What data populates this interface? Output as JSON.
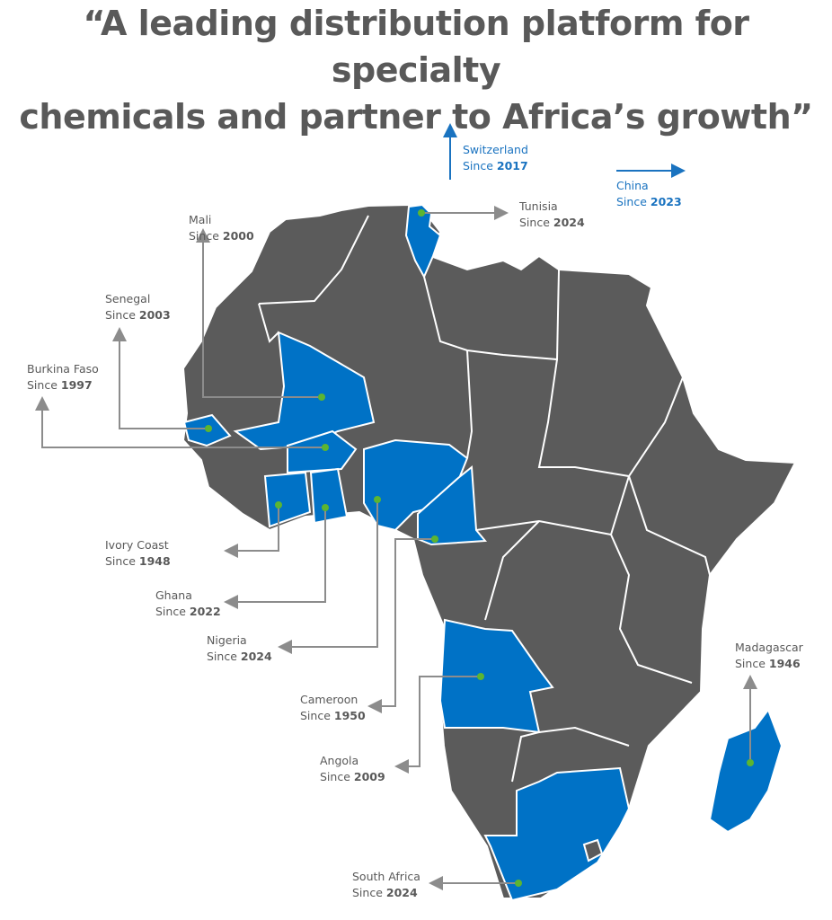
{
  "title": {
    "line1": "“A leading distribution platform for specialty",
    "line2": "chemicals and partner to Africa’s growth”"
  },
  "colors": {
    "highlight": "#0072c6",
    "land": "#5b5b5b",
    "border": "#ffffff",
    "marker": "#5cb531",
    "callout": "#8c8c8c",
    "label": "#595959",
    "offshore_label": "#1a73c0"
  },
  "since_prefix": "Since ",
  "countries": [
    {
      "name": "Tunisia",
      "year": "2024"
    },
    {
      "name": "Mali",
      "year": "2000"
    },
    {
      "name": "Senegal",
      "year": "2003"
    },
    {
      "name": "Burkina Faso",
      "year": "1997"
    },
    {
      "name": "Ivory Coast",
      "year": "1948"
    },
    {
      "name": "Ghana",
      "year": "2022"
    },
    {
      "name": "Nigeria",
      "year": "2024"
    },
    {
      "name": "Cameroon",
      "year": "1950"
    },
    {
      "name": "Angola",
      "year": "2009"
    },
    {
      "name": "South Africa",
      "year": "2024"
    },
    {
      "name": "Madagascar",
      "year": "1946"
    }
  ],
  "offshore": [
    {
      "name": "Switzerland",
      "year": "2017",
      "direction": "north"
    },
    {
      "name": "China",
      "year": "2023",
      "direction": "east"
    }
  ]
}
